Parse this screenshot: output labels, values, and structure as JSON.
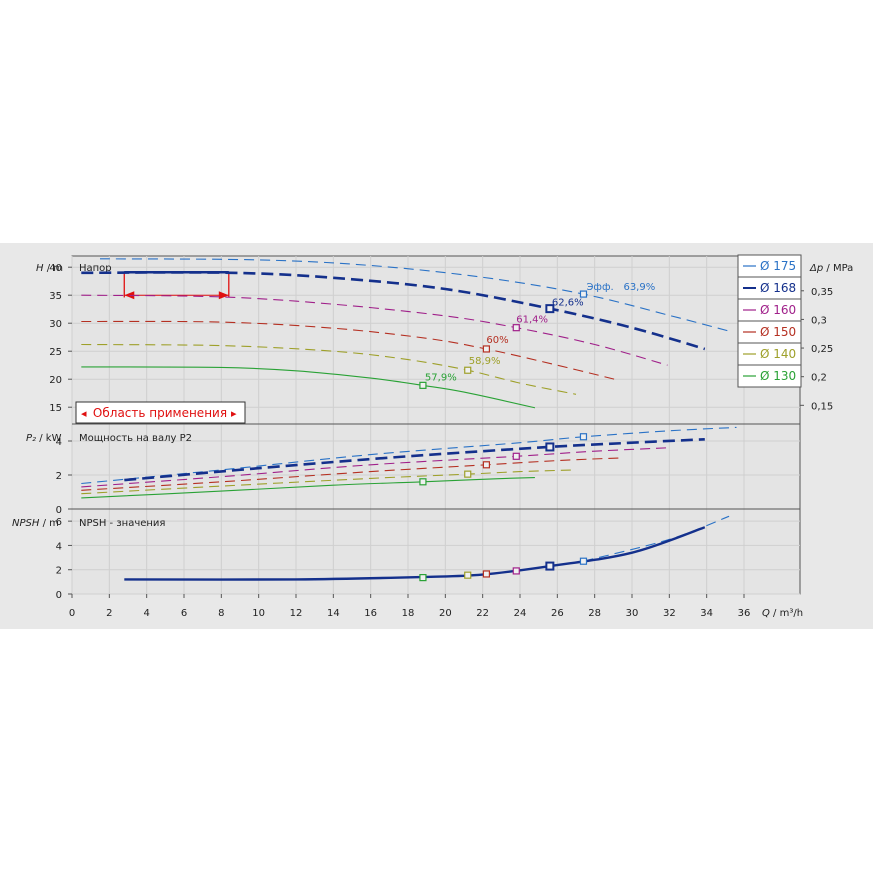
{
  "chart_data": {
    "type": "line",
    "x_axis": {
      "label": "Q",
      "unit": "m³/h",
      "range": [
        0,
        39
      ],
      "ticks": [
        0,
        2,
        4,
        6,
        8,
        10,
        12,
        14,
        16,
        18,
        20,
        22,
        24,
        26,
        28,
        30,
        32,
        34,
        36
      ]
    },
    "panels": {
      "head": {
        "title": "Напор",
        "y_label": "H",
        "y_unit": "m",
        "y_range": [
          12,
          42
        ],
        "y_ticks": [
          15,
          20,
          25,
          30,
          35,
          40
        ],
        "right_label": "Δp",
        "right_unit": "MPa",
        "right_ticks": [
          {
            "value": 0.15,
            "label": "0,15"
          },
          {
            "value": 0.2,
            "label": "0,2"
          },
          {
            "value": 0.25,
            "label": "0,25"
          },
          {
            "value": 0.3,
            "label": "0,3"
          },
          {
            "value": 0.35,
            "label": "0,35"
          }
        ],
        "efficiency_title": "Эфф.",
        "application_area": {
          "label": "Область применения",
          "arrow_left": "◂",
          "arrow_right": "▸",
          "q_min": 2.8,
          "q_max": 8.4
        }
      },
      "power": {
        "title": "Мощность на валу P2",
        "y_label": "P₂",
        "y_unit": "kW",
        "y_range": [
          0,
          5
        ],
        "y_ticks": [
          0,
          2,
          4
        ]
      },
      "npsh": {
        "title": "NPSH - значения",
        "y_label": "NPSH",
        "y_unit": "m",
        "y_range": [
          0,
          7
        ],
        "y_ticks": [
          0,
          2,
          4,
          6
        ]
      }
    },
    "legend": {
      "placement": "top-right",
      "entries": [
        "Ø 175",
        "Ø 168",
        "Ø 160",
        "Ø 150",
        "Ø 140",
        "Ø 130"
      ]
    },
    "series": [
      {
        "name": "Ø 175",
        "color": "#2a72c6",
        "dashed": true,
        "bold": false,
        "head": [
          [
            1.5,
            41.5
          ],
          [
            10,
            41.3
          ],
          [
            16,
            40.3
          ],
          [
            22,
            38.2
          ],
          [
            27.4,
            35.2
          ],
          [
            32,
            31.4
          ],
          [
            35.3,
            28.5
          ]
        ],
        "power": [
          [
            0.5,
            1.5
          ],
          [
            8,
            2.3
          ],
          [
            16,
            3.2
          ],
          [
            24,
            3.9
          ],
          [
            27.4,
            4.25
          ],
          [
            32,
            4.6
          ],
          [
            35.6,
            4.8
          ]
        ],
        "npsh": [
          [
            27.4,
            2.7
          ],
          [
            32,
            4.5
          ],
          [
            35.2,
            6.4
          ]
        ],
        "bep": {
          "q": 27.4,
          "h": 35.2,
          "p": 4.25,
          "npsh": 2.7,
          "label": "63,9%"
        }
      },
      {
        "name": "Ø 168",
        "color": "#14308c",
        "dashed": true,
        "bold": true,
        "head": [
          [
            0.5,
            39
          ],
          [
            8.5,
            39
          ],
          [
            14,
            38.1
          ],
          [
            20,
            36.1
          ],
          [
            25.6,
            32.6
          ],
          [
            30,
            29.2
          ],
          [
            33.9,
            25.4
          ]
        ],
        "power": [
          [
            2.8,
            1.7
          ],
          [
            10,
            2.4
          ],
          [
            18,
            3.1
          ],
          [
            25.6,
            3.65
          ],
          [
            30,
            3.9
          ],
          [
            33.9,
            4.1
          ]
        ],
        "npsh": [
          [
            2.8,
            1.2
          ],
          [
            12,
            1.2
          ],
          [
            18.8,
            1.4
          ],
          [
            22,
            1.6
          ],
          [
            25.6,
            2.3
          ],
          [
            30,
            3.4
          ],
          [
            33.9,
            5.5
          ]
        ],
        "bep": {
          "q": 25.6,
          "h": 32.6,
          "p": 3.65,
          "npsh": 2.3,
          "label": "62,6%"
        }
      },
      {
        "name": "Ø 160",
        "color": "#a0208a",
        "dashed": true,
        "bold": false,
        "head": [
          [
            0.5,
            35
          ],
          [
            8,
            34.7
          ],
          [
            14,
            33.4
          ],
          [
            20,
            31.3
          ],
          [
            23.8,
            29.2
          ],
          [
            28,
            26.2
          ],
          [
            31.9,
            22.5
          ]
        ],
        "power": [
          [
            0.5,
            1.3
          ],
          [
            8,
            1.9
          ],
          [
            16,
            2.6
          ],
          [
            23.8,
            3.1
          ],
          [
            28,
            3.4
          ],
          [
            31.9,
            3.6
          ]
        ],
        "npsh": [
          [
            23.8,
            1.9
          ]
        ],
        "bep": {
          "q": 23.8,
          "h": 29.2,
          "p": 3.1,
          "npsh": 1.9,
          "label": "61,4%"
        }
      },
      {
        "name": "Ø 150",
        "color": "#b53022",
        "dashed": true,
        "bold": false,
        "head": [
          [
            0.5,
            30.3
          ],
          [
            8,
            30.2
          ],
          [
            14,
            29.1
          ],
          [
            19,
            27.3
          ],
          [
            22.2,
            25.4
          ],
          [
            26,
            22.5
          ],
          [
            29.3,
            19.8
          ]
        ],
        "power": [
          [
            0.5,
            1.1
          ],
          [
            8,
            1.6
          ],
          [
            16,
            2.2
          ],
          [
            22.2,
            2.6
          ],
          [
            26,
            2.85
          ],
          [
            29.3,
            3.0
          ]
        ],
        "npsh": [
          [
            22.2,
            1.65
          ]
        ],
        "bep": {
          "q": 22.2,
          "h": 25.4,
          "p": 2.6,
          "npsh": 1.65,
          "label": "60%"
        }
      },
      {
        "name": "Ø 140",
        "color": "#9ea02a",
        "dashed": true,
        "bold": false,
        "head": [
          [
            0.5,
            26.2
          ],
          [
            8,
            26
          ],
          [
            14,
            25
          ],
          [
            18,
            23.5
          ],
          [
            21.2,
            21.6
          ],
          [
            24,
            19.3
          ],
          [
            27,
            17.3
          ]
        ],
        "power": [
          [
            0.5,
            0.9
          ],
          [
            8,
            1.35
          ],
          [
            16,
            1.8
          ],
          [
            21.2,
            2.05
          ],
          [
            24,
            2.2
          ],
          [
            27,
            2.3
          ]
        ],
        "npsh": [
          [
            21.2,
            1.55
          ]
        ],
        "bep": {
          "q": 21.2,
          "h": 21.6,
          "p": 2.05,
          "npsh": 1.55,
          "label": "58,9%"
        }
      },
      {
        "name": "Ø 130",
        "color": "#2aa236",
        "dashed": false,
        "bold": false,
        "head": [
          [
            0.5,
            22.2
          ],
          [
            8,
            22.1
          ],
          [
            12,
            21.5
          ],
          [
            16,
            20.2
          ],
          [
            18.8,
            18.9
          ],
          [
            21,
            17.7
          ],
          [
            24.8,
            14.9
          ]
        ],
        "power": [
          [
            0.5,
            0.65
          ],
          [
            8,
            1.05
          ],
          [
            14,
            1.4
          ],
          [
            18.8,
            1.6
          ],
          [
            22,
            1.75
          ],
          [
            24.8,
            1.85
          ]
        ],
        "npsh": [
          [
            18.8,
            1.35
          ]
        ],
        "bep": {
          "q": 18.8,
          "h": 18.9,
          "p": 1.6,
          "npsh": 1.35,
          "label": "57,9%"
        }
      }
    ]
  }
}
